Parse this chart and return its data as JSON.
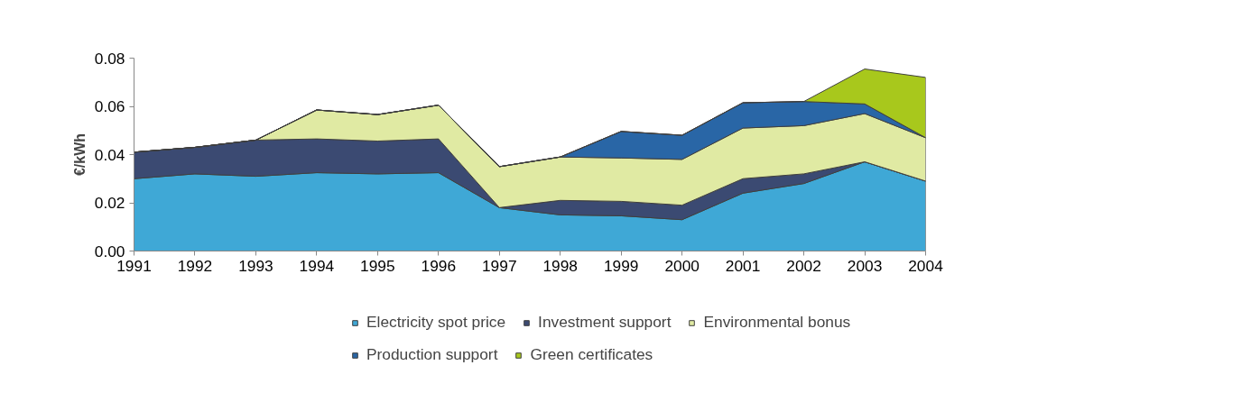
{
  "chart_data": {
    "type": "area",
    "stacked": true,
    "ylabel": "€/kWh",
    "categories": [
      "1991",
      "1992",
      "1993",
      "1994",
      "1995",
      "1996",
      "1997",
      "1998",
      "1999",
      "2000",
      "2001",
      "2002",
      "2003",
      "2004"
    ],
    "series": [
      {
        "name": "Electricity spot price",
        "color": "#3fa8d6",
        "values": [
          0.03,
          0.032,
          0.031,
          0.0325,
          0.032,
          0.0325,
          0.018,
          0.015,
          0.0146,
          0.013,
          0.024,
          0.028,
          0.037,
          0.029
        ]
      },
      {
        "name": "Investment support",
        "color": "#3b4a72",
        "values": [
          0.011,
          0.011,
          0.015,
          0.014,
          0.0136,
          0.014,
          0,
          0.006,
          0.006,
          0.006,
          0.006,
          0.004,
          0,
          0
        ]
      },
      {
        "name": "Environmental bonus",
        "color": "#e0eaa3",
        "values": [
          0,
          0,
          0,
          0.012,
          0.011,
          0.014,
          0.017,
          0.018,
          0.018,
          0.019,
          0.021,
          0.02,
          0.02,
          0.018
        ]
      },
      {
        "name": "Production support",
        "color": "#2966a6",
        "values": [
          0,
          0,
          0,
          0,
          0,
          0,
          0,
          0,
          0.011,
          0.01,
          0.0105,
          0.01,
          0.004,
          0
        ]
      },
      {
        "name": "Green certificates",
        "color": "#a8c81c",
        "values": [
          0,
          0,
          0,
          0,
          0,
          0,
          0,
          0,
          0,
          0,
          0,
          0,
          0.0145,
          0.025
        ]
      }
    ],
    "ylim": [
      0,
      0.08
    ],
    "yticks": [
      {
        "value": 0,
        "label": "0.00"
      },
      {
        "value": 0.02,
        "label": "0.02"
      },
      {
        "value": 0.04,
        "label": "0.04"
      },
      {
        "value": 0.06,
        "label": "0.06"
      },
      {
        "value": 0.08,
        "label": "0.08"
      }
    ],
    "grid": false,
    "legend": "bottom"
  }
}
